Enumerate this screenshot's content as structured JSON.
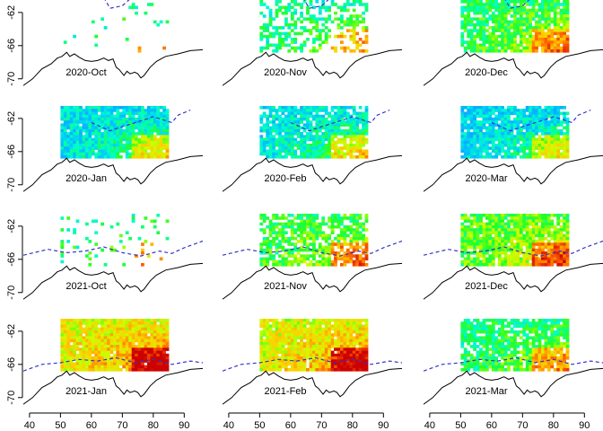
{
  "chart_data": {
    "type": "heatmap",
    "layout": {
      "rows": 4,
      "cols": 3
    },
    "x_axis": {
      "range": [
        38,
        96
      ],
      "ticks": [
        40,
        50,
        60,
        70,
        80,
        90
      ]
    },
    "y_axis": {
      "range": [
        -71,
        -60.5
      ],
      "ticks": [
        -62,
        -66,
        -70
      ],
      "tick_labels": [
        "-62",
        "-66",
        "-70"
      ]
    },
    "data_extent": {
      "lon": [
        50,
        85
      ],
      "lat": [
        -66.5,
        -60.5
      ]
    },
    "colorscale": [
      "#1e90ff",
      "#00bfff",
      "#00ffcc",
      "#22ff22",
      "#ccff00",
      "#ffcc00",
      "#ff6600",
      "#cc0000"
    ],
    "colors": {
      "coastline": "#000000",
      "ice_edge": "#3333cc"
    },
    "panels": [
      {
        "label": "2020-Oct",
        "coverage": 0.04,
        "mean_level": 0.3
      },
      {
        "label": "2020-Nov",
        "coverage": 0.45,
        "mean_level": 0.32
      },
      {
        "label": "2020-Dec",
        "coverage": 0.85,
        "mean_level": 0.38
      },
      {
        "label": "2020-Jan",
        "coverage": 0.95,
        "mean_level": 0.2
      },
      {
        "label": "2020-Feb",
        "coverage": 0.85,
        "mean_level": 0.22
      },
      {
        "label": "2020-Mar",
        "coverage": 0.92,
        "mean_level": 0.18
      },
      {
        "label": "2021-Oct",
        "coverage": 0.1,
        "mean_level": 0.35
      },
      {
        "label": "2021-Nov",
        "coverage": 0.7,
        "mean_level": 0.4
      },
      {
        "label": "2021-Dec",
        "coverage": 0.9,
        "mean_level": 0.45
      },
      {
        "label": "2021-Jan",
        "coverage": 0.97,
        "mean_level": 0.62
      },
      {
        "label": "2021-Feb",
        "coverage": 0.97,
        "mean_level": 0.6
      },
      {
        "label": "2021-Mar",
        "coverage": 0.85,
        "mean_level": 0.35
      }
    ]
  }
}
